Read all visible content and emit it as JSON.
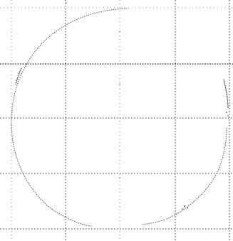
{
  "canvas": {
    "background": "#ffffff",
    "grid_color": "#333333",
    "curve_color": "#555555"
  },
  "elements": {
    "grid": "dotted-grid",
    "shape": "dotted-circle-sketch"
  }
}
